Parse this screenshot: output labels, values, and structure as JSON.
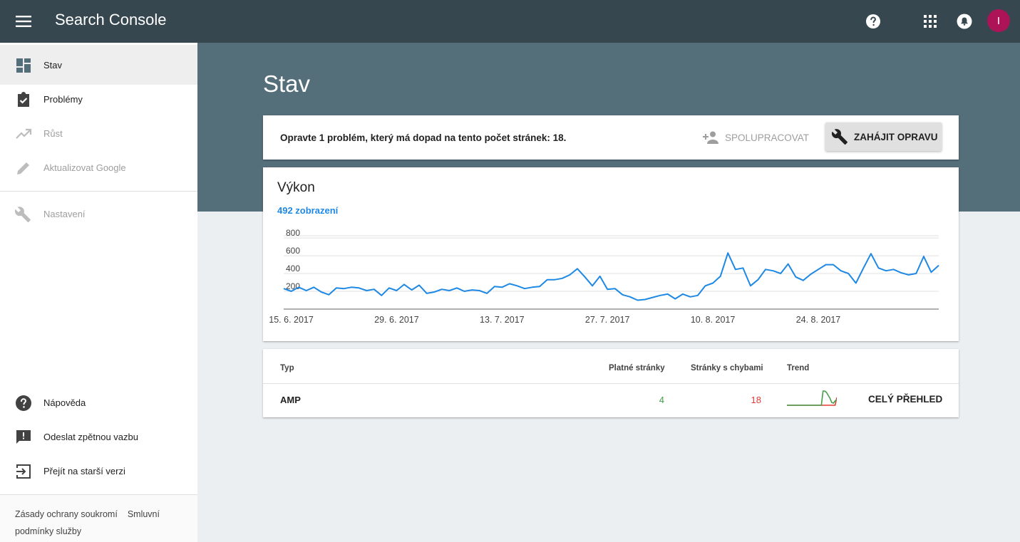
{
  "app": {
    "title": "Search Console",
    "avatar_letter": "I"
  },
  "topbar_icons": [
    "help-icon",
    "apps-grid-icon",
    "notifications-icon"
  ],
  "sidebar": {
    "items": [
      {
        "label": "Stav",
        "icon": "dashboard-icon",
        "active": true
      },
      {
        "label": "Problémy",
        "icon": "assignment-check-icon"
      },
      {
        "label": "Růst",
        "icon": "trending-up-icon",
        "disabled": true
      },
      {
        "label": "Aktualizovat Google",
        "icon": "pencil-icon",
        "disabled": true
      },
      {
        "label": "Nastavení",
        "icon": "wrench-icon",
        "disabled": true
      }
    ],
    "bottom_items": [
      {
        "label": "Nápověda",
        "icon": "help-circle-icon"
      },
      {
        "label": "Odeslat zpětnou vazbu",
        "icon": "feedback-icon"
      },
      {
        "label": "Přejít na starší verzi",
        "icon": "exit-to-app-icon"
      }
    ],
    "footer": {
      "privacy": "Zásady ochrany soukromí",
      "terms": "Smluvní podmínky služby"
    }
  },
  "page": {
    "title": "Stav"
  },
  "issue_banner": {
    "text": "Opravte 1 problém, který má dopad na tento počet stránek: 18.",
    "collaborate_label": "SPOLUPRACOVAT",
    "fix_label": "ZAHÁJIT OPRAVU"
  },
  "performance": {
    "title": "Výkon",
    "metric": "492 zobrazení",
    "line_color": "#1e88e5"
  },
  "chart_data": {
    "type": "line",
    "title": "",
    "xlabel": "",
    "ylabel": "",
    "ylim": [
      0,
      800
    ],
    "y_ticks": [
      200,
      400,
      600,
      800
    ],
    "x_tick_labels": [
      {
        "label": "15. 6. 2017",
        "x": "2017-06-15"
      },
      {
        "label": "29. 6. 2017",
        "x": "2017-06-29"
      },
      {
        "label": "13. 7. 2017",
        "x": "2017-07-13"
      },
      {
        "label": "27. 7. 2017",
        "x": "2017-07-27"
      },
      {
        "label": "10. 8. 2017",
        "x": "2017-08-10"
      },
      {
        "label": "24. 8. 2017",
        "x": "2017-08-24"
      }
    ],
    "grid": true,
    "series": [
      {
        "values": [
          [
            "2017-06-14",
            231
          ],
          [
            "2017-06-15",
            200
          ],
          [
            "2017-06-16",
            246
          ],
          [
            "2017-06-17",
            208
          ],
          [
            "2017-06-18",
            246
          ],
          [
            "2017-06-19",
            192
          ],
          [
            "2017-06-20",
            162
          ],
          [
            "2017-06-21",
            238
          ],
          [
            "2017-06-22",
            231
          ],
          [
            "2017-06-23",
            246
          ],
          [
            "2017-06-24",
            238
          ],
          [
            "2017-06-25",
            208
          ],
          [
            "2017-06-26",
            223
          ],
          [
            "2017-06-27",
            154
          ],
          [
            "2017-06-28",
            238
          ],
          [
            "2017-06-29",
            208
          ],
          [
            "2017-06-30",
            277
          ],
          [
            "2017-07-01",
            215
          ],
          [
            "2017-07-02",
            269
          ],
          [
            "2017-07-03",
            177
          ],
          [
            "2017-07-04",
            192
          ],
          [
            "2017-07-05",
            223
          ],
          [
            "2017-07-06",
            208
          ],
          [
            "2017-07-07",
            238
          ],
          [
            "2017-07-08",
            200
          ],
          [
            "2017-07-09",
            215
          ],
          [
            "2017-07-10",
            208
          ],
          [
            "2017-07-11",
            177
          ],
          [
            "2017-07-12",
            254
          ],
          [
            "2017-07-13",
            246
          ],
          [
            "2017-07-14",
            285
          ],
          [
            "2017-07-15",
            262
          ],
          [
            "2017-07-16",
            231
          ],
          [
            "2017-07-17",
            246
          ],
          [
            "2017-07-18",
            254
          ],
          [
            "2017-07-19",
            331
          ],
          [
            "2017-07-20",
            331
          ],
          [
            "2017-07-21",
            346
          ],
          [
            "2017-07-22",
            385
          ],
          [
            "2017-07-23",
            454
          ],
          [
            "2017-07-24",
            362
          ],
          [
            "2017-07-25",
            262
          ],
          [
            "2017-07-26",
            369
          ],
          [
            "2017-07-27",
            223
          ],
          [
            "2017-07-28",
            231
          ],
          [
            "2017-07-29",
            162
          ],
          [
            "2017-07-30",
            138
          ],
          [
            "2017-07-31",
            100
          ],
          [
            "2017-08-01",
            108
          ],
          [
            "2017-08-02",
            131
          ],
          [
            "2017-08-03",
            154
          ],
          [
            "2017-08-04",
            169
          ],
          [
            "2017-08-05",
            115
          ],
          [
            "2017-08-06",
            169
          ],
          [
            "2017-08-07",
            138
          ],
          [
            "2017-08-08",
            154
          ],
          [
            "2017-08-09",
            262
          ],
          [
            "2017-08-10",
            292
          ],
          [
            "2017-08-11",
            369
          ],
          [
            "2017-08-12",
            631
          ],
          [
            "2017-08-13",
            446
          ],
          [
            "2017-08-14",
            462
          ],
          [
            "2017-08-15",
            262
          ],
          [
            "2017-08-16",
            331
          ],
          [
            "2017-08-17",
            446
          ],
          [
            "2017-08-18",
            431
          ],
          [
            "2017-08-19",
            400
          ],
          [
            "2017-08-20",
            508
          ],
          [
            "2017-08-21",
            362
          ],
          [
            "2017-08-22",
            323
          ],
          [
            "2017-08-23",
            392
          ],
          [
            "2017-08-24",
            446
          ],
          [
            "2017-08-25",
            500
          ],
          [
            "2017-08-26",
            500
          ],
          [
            "2017-08-27",
            431
          ],
          [
            "2017-08-28",
            400
          ],
          [
            "2017-08-29",
            292
          ],
          [
            "2017-08-30",
            462
          ],
          [
            "2017-08-31",
            623
          ],
          [
            "2017-09-01",
            462
          ],
          [
            "2017-09-02",
            431
          ],
          [
            "2017-09-03",
            446
          ],
          [
            "2017-09-04",
            408
          ],
          [
            "2017-09-05",
            385
          ],
          [
            "2017-09-06",
            400
          ],
          [
            "2017-09-07",
            592
          ],
          [
            "2017-09-08",
            415
          ],
          [
            "2017-09-09",
            492
          ]
        ]
      }
    ]
  },
  "table": {
    "headers": {
      "type": "Typ",
      "valid": "Platné stránky",
      "errors": "Stránky s chybami",
      "trend": "Trend"
    },
    "rows": [
      {
        "type": "AMP",
        "valid": "4",
        "errors": "18",
        "valid_color": "#43a047",
        "errors_color": "#e53935",
        "link": "CELÝ PŘEHLED",
        "trend": {
          "valid_values": [
            0,
            0,
            0,
            0,
            0,
            0,
            0,
            0,
            0,
            0,
            0,
            0,
            0,
            0,
            0,
            0,
            0,
            0,
            0,
            0,
            0,
            1,
            1,
            0.9,
            0.7,
            0.5,
            0.2,
            0.15,
            0.3,
            0.4
          ],
          "errors_values": [
            0,
            0,
            0,
            0,
            0,
            0,
            0,
            0,
            0,
            0,
            0,
            0,
            0,
            0,
            0,
            0,
            0,
            0,
            0,
            0,
            0,
            0,
            0,
            0,
            0,
            0,
            0,
            0,
            0,
            0.55
          ]
        }
      }
    ]
  }
}
